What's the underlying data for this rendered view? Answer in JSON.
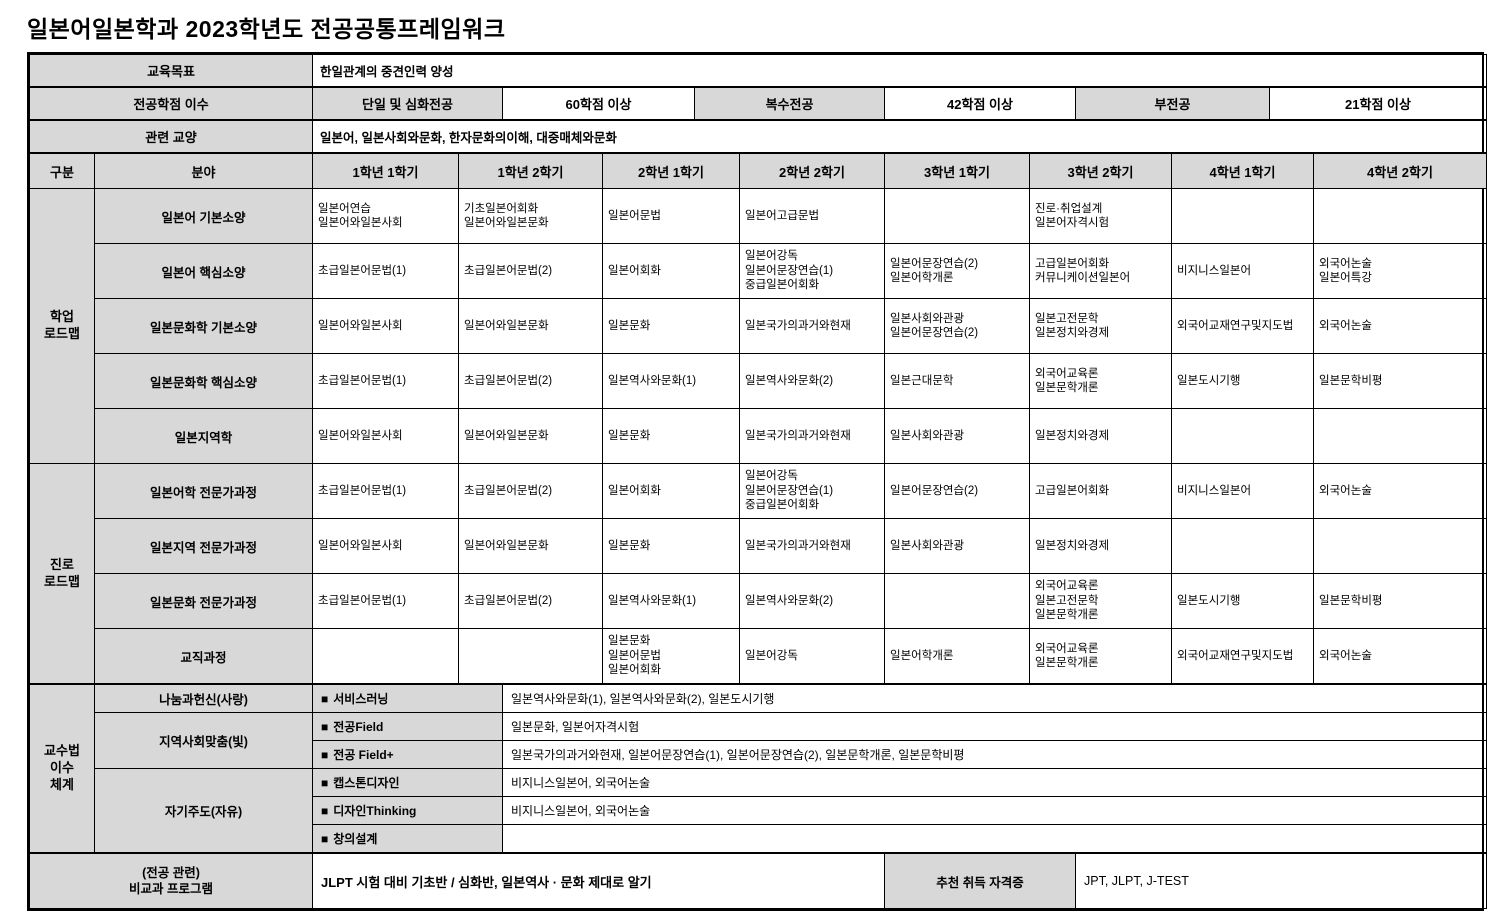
{
  "title": "일본어일본학과 2023학년도 전공공통프레임워크",
  "info": {
    "goal_label": "교육목표",
    "goal_value": "한일관계의 중견인력 양성",
    "credits_label": "전공학점 이수",
    "credits": [
      {
        "name": "단일 및 심화전공",
        "value": "60학점 이상"
      },
      {
        "name": "복수전공",
        "value": "42학점 이상"
      },
      {
        "name": "부전공",
        "value": "21학점 이상"
      }
    ],
    "liberal_label": "관련 교양",
    "liberal_value": "일본어, 일본사회와문화, 한자문화의이해, 대중매체와문화"
  },
  "grid": {
    "col_headers": [
      "구분",
      "분야",
      "1학년 1학기",
      "1학년 2학기",
      "2학년 1학기",
      "2학년 2학기",
      "3학년 1학기",
      "3학년 2학기",
      "4학년 1학기",
      "4학년 2학기"
    ],
    "sections": [
      {
        "name": "학업\n로드맵",
        "rows": [
          {
            "field": "일본어 기본소양",
            "cells": [
              "일본어연습\n일본어와일본사회",
              "기초일본어회화\n일본어와일본문화",
              "일본어문법",
              "일본어고급문법",
              "",
              "진로·취업설계\n일본어자격시험",
              "",
              ""
            ]
          },
          {
            "field": "일본어 핵심소양",
            "cells": [
              "초급일본어문법(1)",
              "초급일본어문법(2)",
              "일본어회화",
              "일본어강독\n일본어문장연습(1)\n중급일본어회화",
              "일본어문장연습(2)\n일본어학개론",
              "고급일본어회화\n커뮤니케이션일본어",
              "비지니스일본어",
              "외국어논술\n일본어특강"
            ]
          },
          {
            "field": "일본문화학 기본소양",
            "cells": [
              "일본어와일본사회",
              "일본어와일본문화",
              "일본문화",
              "일본국가의과거와현재",
              "일본사회와관광\n일본어문장연습(2)",
              "일본고전문학\n일본정치와경제",
              "외국어교재연구및지도법",
              "외국어논술"
            ]
          },
          {
            "field": "일본문화학 핵심소양",
            "cells": [
              "초급일본어문법(1)",
              "초급일본어문법(2)",
              "일본역사와문화(1)",
              "일본역사와문화(2)",
              "일본근대문학",
              "외국어교육론\n일본문학개론",
              "일본도시기행",
              "일본문학비평"
            ]
          },
          {
            "field": "일본지역학",
            "cells": [
              "일본어와일본사회",
              "일본어와일본문화",
              "일본문화",
              "일본국가의과거와현재",
              "일본사회와관광",
              "일본정치와경제",
              "",
              ""
            ]
          }
        ]
      },
      {
        "name": "진로\n로드맵",
        "rows": [
          {
            "field": "일본어학 전문가과정",
            "cells": [
              "초급일본어문법(1)",
              "초급일본어문법(2)",
              "일본어회화",
              "일본어강독\n일본어문장연습(1)\n중급일본어회화",
              "일본어문장연습(2)",
              "고급일본어회화",
              "비지니스일본어",
              "외국어논술"
            ]
          },
          {
            "field": "일본지역 전문가과정",
            "cells": [
              "일본어와일본사회",
              "일본어와일본문화",
              "일본문화",
              "일본국가의과거와현재",
              "일본사회와관광",
              "일본정치와경제",
              "",
              ""
            ]
          },
          {
            "field": "일본문화 전문가과정",
            "cells": [
              "초급일본어문법(1)",
              "초급일본어문법(2)",
              "일본역사와문화(1)",
              "일본역사와문화(2)",
              "",
              "외국어교육론\n일본고전문학\n일본문학개론",
              "일본도시기행",
              "일본문학비평"
            ]
          },
          {
            "field": "교직과정",
            "cells": [
              "",
              "",
              "일본문화\n일본어문법\n일본어회화",
              "일본어강독",
              "일본어학개론",
              "외국어교육론\n일본문학개론",
              "외국어교재연구및지도법",
              "외국어논술"
            ]
          }
        ]
      }
    ]
  },
  "teaching": {
    "name": "교수법\n이수\n체계",
    "rows": [
      {
        "category": "나눔과헌신(사랑)",
        "cat_rowspan": 1,
        "marker": "■",
        "method": "서비스러닝",
        "courses": "일본역사와문화(1), 일본역사와문화(2), 일본도시기행"
      },
      {
        "category": "지역사회맞춤(빛)",
        "cat_rowspan": 2,
        "marker": "■",
        "method": "전공Field",
        "courses": "일본문화, 일본어자격시험"
      },
      {
        "marker": "■",
        "method": "전공 Field+",
        "courses": "일본국가의과거와현재, 일본어문장연습(1), 일본어문장연습(2), 일본문학개론, 일본문학비평"
      },
      {
        "category": "자기주도(자유)",
        "cat_rowspan": 3,
        "marker": "■",
        "method": "캡스톤디자인",
        "courses": "비지니스일본어, 외국어논술"
      },
      {
        "marker": "■",
        "method": "디자인Thinking",
        "courses": "비지니스일본어, 외국어논술"
      },
      {
        "marker": "■",
        "method": "창의설계",
        "courses": ""
      }
    ]
  },
  "extra": {
    "label": "(전공 관련)\n비교과 프로그램",
    "programs": "JLPT 시험 대비 기초반 / 심화반, 일본역사 · 문화 제대로 알기",
    "cert_label": "추천 취득 자격증",
    "cert_value": "JPT, JLPT, J-TEST"
  }
}
